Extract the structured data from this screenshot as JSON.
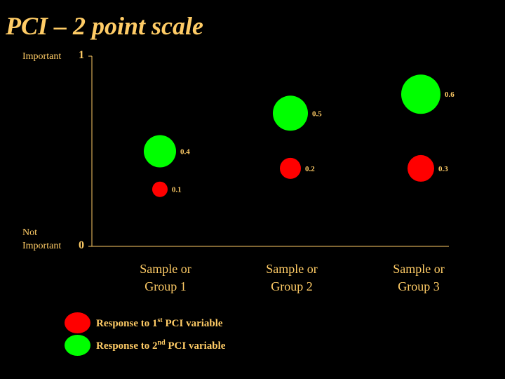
{
  "slide": {
    "title": "PCI – 2 point scale"
  },
  "axis": {
    "top_word": "Important",
    "top_value": "1",
    "bottom_word_line1": "Not",
    "bottom_word_line2": "Important",
    "bottom_value": "0"
  },
  "groups": [
    {
      "line1": "Sample or",
      "line2": "Group 1"
    },
    {
      "line1": "Sample or",
      "line2": "Group 2"
    },
    {
      "line1": "Sample or",
      "line2": "Group 3"
    }
  ],
  "legend": [
    {
      "prefix": "Response to 1",
      "sup": "st",
      "suffix": " PCI variable",
      "color": "#FF0000"
    },
    {
      "prefix": "Response to 2",
      "sup": "nd",
      "suffix": " PCI variable",
      "color": "#00FF00"
    }
  ],
  "chart_data": {
    "type": "scatter",
    "title": "PCI – 2 point scale",
    "categories": [
      "Sample or Group 1",
      "Sample or Group 2",
      "Sample or Group 3"
    ],
    "ylim": [
      0,
      1
    ],
    "series": [
      {
        "name": "Response to 1st PCI variable",
        "color": "#FF0000",
        "values": [
          0.3,
          0.41,
          0.41
        ],
        "labels": [
          "0.1",
          "0.2",
          "0.3"
        ]
      },
      {
        "name": "Response to 2nd PCI variable",
        "color": "#00FF00",
        "values": [
          0.5,
          0.7,
          0.8
        ],
        "labels": [
          "0.4",
          "0.5",
          "0.6"
        ]
      }
    ],
    "grid": false
  }
}
